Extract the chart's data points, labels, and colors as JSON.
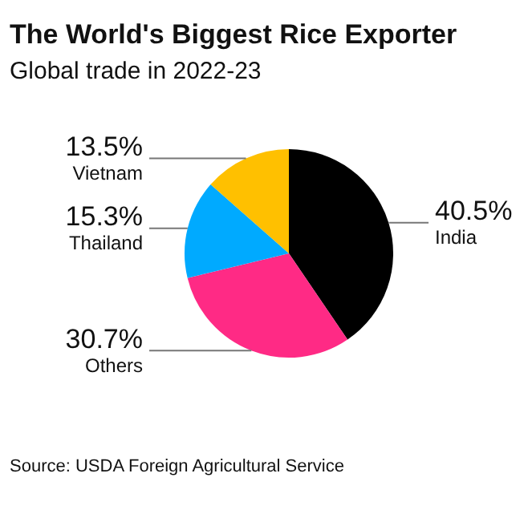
{
  "chart_data": {
    "type": "pie",
    "title": "The World's Biggest Rice Exporter",
    "subtitle": "Global trade in 2022-23",
    "categories": [
      "India",
      "Others",
      "Thailand",
      "Vietnam"
    ],
    "values": [
      40.5,
      30.7,
      15.3,
      13.5
    ],
    "colors": [
      "#000000",
      "#ff2a85",
      "#00aaff",
      "#ffc000"
    ],
    "value_labels": [
      "40.5%",
      "30.7%",
      "15.3%",
      "13.5%"
    ],
    "legend": false,
    "annotations": [
      "Source: USDA Foreign Agricultural Service"
    ]
  }
}
